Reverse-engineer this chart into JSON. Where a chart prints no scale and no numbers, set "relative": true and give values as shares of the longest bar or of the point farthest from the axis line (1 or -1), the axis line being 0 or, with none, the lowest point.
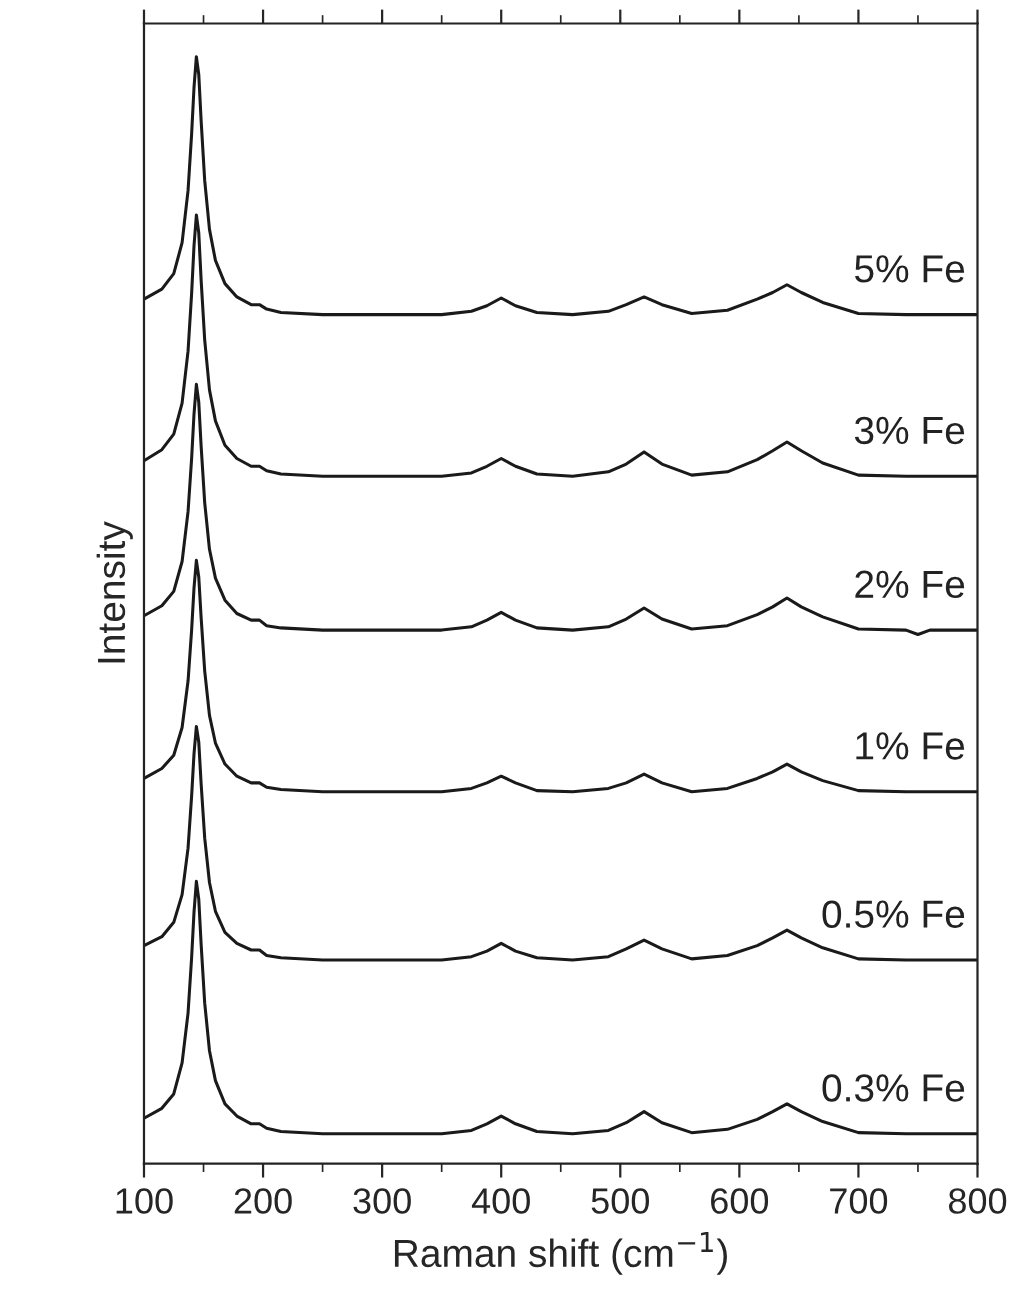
{
  "chart_data": {
    "type": "line",
    "relative": true,
    "xlabel": "Raman shift (cm$^{−1}$)",
    "ylabel": "Intensity",
    "x": [
      100,
      115,
      125,
      132,
      137,
      140,
      142,
      144,
      146,
      148,
      151,
      155,
      160,
      168,
      178,
      190,
      197,
      203,
      215,
      250,
      300,
      350,
      375,
      388,
      400,
      412,
      430,
      460,
      490,
      505,
      520,
      535,
      560,
      590,
      615,
      628,
      640,
      652,
      670,
      700,
      740,
      750,
      760,
      800
    ],
    "xlim": [
      100,
      800
    ],
    "xticks": [
      100,
      200,
      300,
      400,
      500,
      600,
      700,
      800
    ],
    "grid": false,
    "legend": false,
    "marker": "none",
    "line_style": "solid",
    "series": [
      {
        "name": "5% Fe",
        "color": "#1a1a1a",
        "values": [
          0.781,
          0.79,
          0.804,
          0.832,
          0.879,
          0.93,
          0.972,
          1.0,
          0.984,
          0.942,
          0.888,
          0.844,
          0.816,
          0.795,
          0.783,
          0.776,
          0.776,
          0.772,
          0.769,
          0.767,
          0.767,
          0.767,
          0.77,
          0.775,
          0.782,
          0.775,
          0.769,
          0.767,
          0.77,
          0.776,
          0.783,
          0.776,
          0.768,
          0.771,
          0.781,
          0.787,
          0.794,
          0.787,
          0.778,
          0.768,
          0.767,
          0.767,
          0.767,
          0.767
        ]
      },
      {
        "name": "3% Fe",
        "color": "#1a1a1a",
        "values": [
          0.635,
          0.645,
          0.659,
          0.687,
          0.734,
          0.786,
          0.829,
          0.857,
          0.841,
          0.798,
          0.744,
          0.699,
          0.671,
          0.649,
          0.637,
          0.63,
          0.63,
          0.626,
          0.623,
          0.621,
          0.621,
          0.621,
          0.624,
          0.63,
          0.637,
          0.63,
          0.623,
          0.621,
          0.625,
          0.632,
          0.643,
          0.632,
          0.622,
          0.625,
          0.636,
          0.644,
          0.652,
          0.644,
          0.633,
          0.622,
          0.621,
          0.621,
          0.621,
          0.621
        ]
      },
      {
        "name": "2% Fe",
        "color": "#1a1a1a",
        "values": [
          0.495,
          0.504,
          0.517,
          0.544,
          0.589,
          0.637,
          0.677,
          0.704,
          0.688,
          0.648,
          0.597,
          0.555,
          0.529,
          0.509,
          0.497,
          0.491,
          0.491,
          0.486,
          0.484,
          0.482,
          0.482,
          0.482,
          0.485,
          0.491,
          0.498,
          0.491,
          0.484,
          0.482,
          0.485,
          0.492,
          0.502,
          0.492,
          0.483,
          0.486,
          0.496,
          0.503,
          0.511,
          0.503,
          0.494,
          0.483,
          0.482,
          0.478,
          0.482,
          0.482
        ]
      },
      {
        "name": "1% Fe",
        "color": "#1a1a1a",
        "values": [
          0.348,
          0.357,
          0.369,
          0.394,
          0.436,
          0.482,
          0.52,
          0.545,
          0.53,
          0.493,
          0.445,
          0.405,
          0.38,
          0.361,
          0.35,
          0.344,
          0.344,
          0.34,
          0.338,
          0.336,
          0.336,
          0.336,
          0.339,
          0.344,
          0.35,
          0.344,
          0.337,
          0.336,
          0.339,
          0.344,
          0.352,
          0.344,
          0.336,
          0.339,
          0.348,
          0.354,
          0.361,
          0.354,
          0.346,
          0.337,
          0.336,
          0.336,
          0.336,
          0.336
        ]
      },
      {
        "name": "0.5% Fe",
        "color": "#1a1a1a",
        "values": [
          0.197,
          0.205,
          0.218,
          0.243,
          0.285,
          0.332,
          0.37,
          0.395,
          0.381,
          0.343,
          0.294,
          0.254,
          0.228,
          0.209,
          0.199,
          0.193,
          0.193,
          0.188,
          0.186,
          0.184,
          0.184,
          0.184,
          0.187,
          0.192,
          0.199,
          0.192,
          0.186,
          0.184,
          0.187,
          0.194,
          0.202,
          0.194,
          0.185,
          0.188,
          0.197,
          0.204,
          0.211,
          0.204,
          0.195,
          0.185,
          0.184,
          0.184,
          0.184,
          0.184
        ]
      },
      {
        "name": "0.3% Fe",
        "color": "#1a1a1a",
        "values": [
          0.041,
          0.05,
          0.063,
          0.091,
          0.136,
          0.186,
          0.227,
          0.255,
          0.239,
          0.198,
          0.145,
          0.102,
          0.075,
          0.054,
          0.043,
          0.036,
          0.036,
          0.032,
          0.029,
          0.027,
          0.027,
          0.027,
          0.03,
          0.036,
          0.043,
          0.036,
          0.029,
          0.027,
          0.03,
          0.037,
          0.047,
          0.037,
          0.028,
          0.031,
          0.04,
          0.047,
          0.054,
          0.047,
          0.038,
          0.028,
          0.027,
          0.027,
          0.027,
          0.027
        ]
      }
    ]
  }
}
